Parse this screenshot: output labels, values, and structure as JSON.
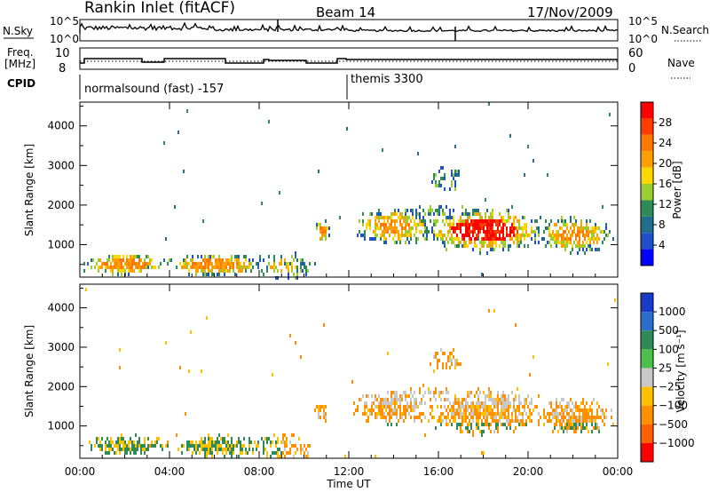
{
  "header": {
    "title": "Rankin Inlet (fitACF)",
    "beam": "Beam 14",
    "date": "17/Nov/2009"
  },
  "top_panels": {
    "nsky_label": "N.Sky",
    "nsearch_label": "N.Search",
    "nsky_ticks": [
      "10^5",
      "10^0"
    ],
    "freq_label_line1": "Freq.",
    "freq_label_line2": "[MHz]",
    "freq_ticks": [
      "10",
      "8"
    ],
    "nave_label": "Nave",
    "nave_ticks": [
      "60",
      "0"
    ],
    "cpid_label": "CPID",
    "cpid_modes": [
      {
        "text": "normalsound (fast) -157",
        "start_hour": 0
      },
      {
        "text": "themis 3300",
        "start_hour": 12
      }
    ]
  },
  "chart_data": [
    {
      "type": "heatmap",
      "name": "power",
      "ylabel": "Slant Range [km]",
      "xlabel": "",
      "x_range_hours": [
        0,
        24
      ],
      "ylim": [
        180,
        4600
      ],
      "yticks": [
        1000,
        2000,
        3000,
        4000
      ],
      "colorbar": {
        "label": "Power [dB]",
        "ticks": [
          "28",
          "24",
          "20",
          "16",
          "12",
          "8",
          "4"
        ],
        "colors": [
          "#ff0000",
          "#ff3c00",
          "#ff7800",
          "#ffa000",
          "#ffd700",
          "#9acd32",
          "#2e8b57",
          "#1e6e8c",
          "#1e50c8",
          "#0000ff"
        ]
      }
    },
    {
      "type": "heatmap",
      "name": "velocity",
      "ylabel": "Slant Range [km]",
      "xlabel": "Time UT",
      "x_range_hours": [
        0,
        24
      ],
      "ylim": [
        180,
        4600
      ],
      "yticks": [
        1000,
        2000,
        3000,
        4000
      ],
      "xtick_labels": [
        "00:00",
        "04:00",
        "08:00",
        "12:00",
        "16:00",
        "20:00",
        "00:00"
      ],
      "colorbar": {
        "label": "Velocity [m s⁻¹]",
        "ticks": [
          "1000",
          "500",
          "100",
          "25",
          "−25",
          "−100",
          "−500",
          "−1000"
        ],
        "colors": [
          "#1a3ac8",
          "#2a6ecc",
          "#2e8b57",
          "#4cc04c",
          "#c8c8c8",
          "#ffc000",
          "#ff9000",
          "#ff6000",
          "#ff0000"
        ]
      }
    }
  ]
}
